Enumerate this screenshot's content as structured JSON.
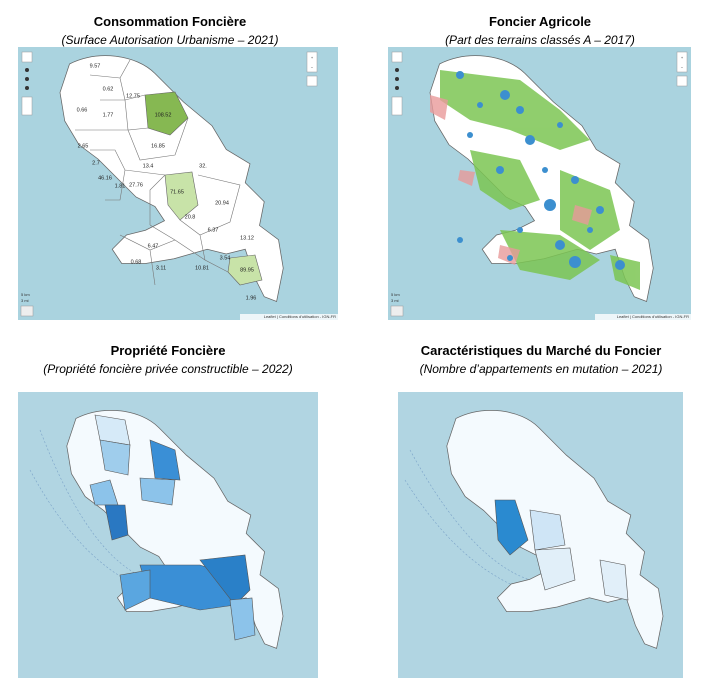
{
  "panels": [
    {
      "title": "Consommation Foncière",
      "subtitle": "(Surface Autorisation Urbanisme – 2021)",
      "labels": [
        "9.57",
        "0.62",
        "12.75",
        "0.66",
        "1.77",
        "108.52",
        "2.65",
        "16.85",
        "2.7",
        "13.4",
        "32.",
        "46.16",
        "1.81",
        "27.76",
        "71.65",
        "20.94",
        "20.8",
        "6.37",
        "13.12",
        "6.47",
        "3.54",
        "0.68",
        "3.11",
        "10.81",
        "89.95",
        "1.96"
      ],
      "zoom": [
        "+",
        "−"
      ],
      "scale": [
        "5 km",
        "3 mi"
      ],
      "attribution": "Leaflet | Conditions d'utilisation - IGN-FR"
    },
    {
      "title": "Foncier Agricole",
      "subtitle": "(Part des terrains classés A – 2017)",
      "zoom": [
        "+",
        "−"
      ],
      "scale": [
        "5 km",
        "3 mi"
      ],
      "attribution": "Leaflet | Conditions d'utilisation - IGN-FR"
    },
    {
      "title": "Propriété Foncière",
      "subtitle": "(Propriété foncière privée constructible – 2022)"
    },
    {
      "title": "Caractéristiques du Marché du Foncier",
      "subtitle": "(Nombre d’appartements en mutation – 2021)"
    }
  ]
}
